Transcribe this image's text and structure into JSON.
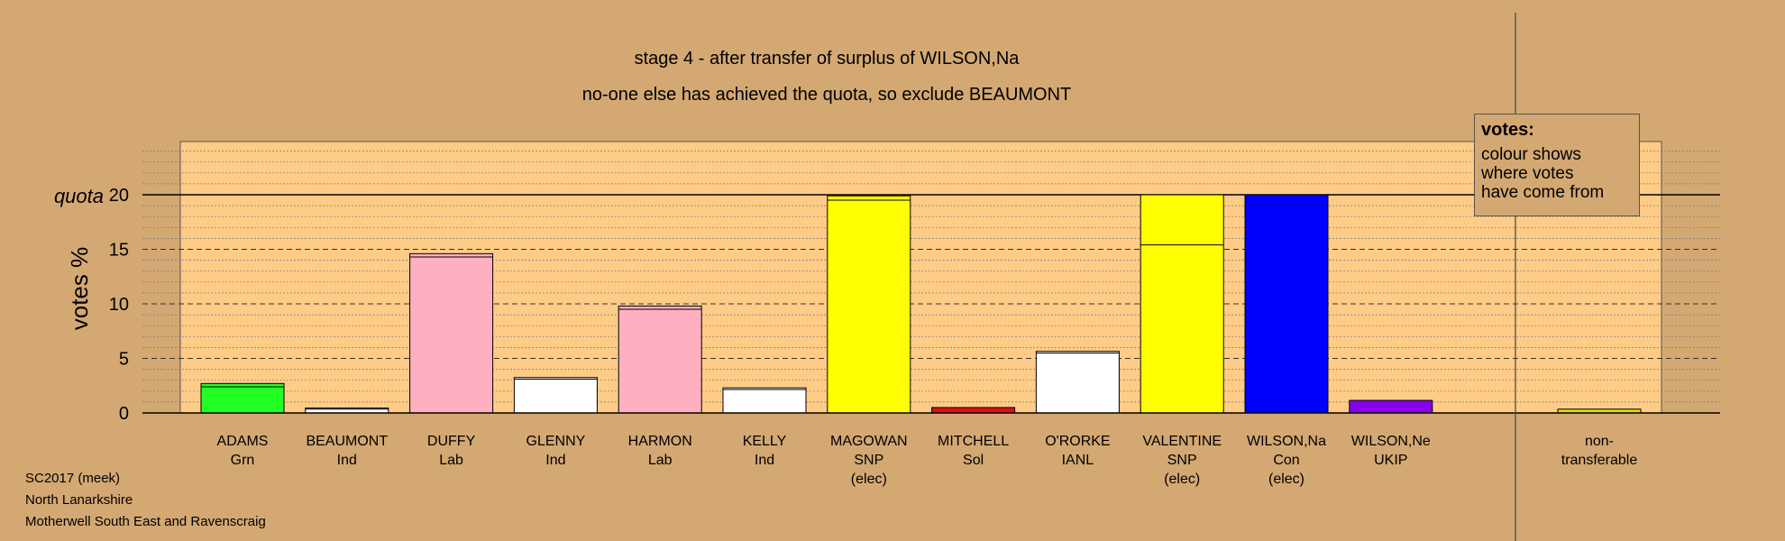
{
  "chart_data": {
    "type": "bar",
    "title": "stage 4 - after transfer of surplus of WILSON,Na",
    "subtitle": "no-one else has achieved the quota, so exclude BEAUMONT",
    "ylabel": "votes %",
    "quota_label": "quota",
    "quota": 20,
    "ylim": [
      0,
      25
    ],
    "yticks": [
      0,
      5,
      10,
      15,
      20
    ],
    "grid": true,
    "categories": [
      {
        "name": "ADAMS",
        "party": "Grn",
        "status": "",
        "color": "#22ff22",
        "base": 2.4,
        "total": 2.7
      },
      {
        "name": "BEAUMONT",
        "party": "Ind",
        "status": "",
        "color": "#ffffff",
        "base": 0.35,
        "total": 0.45
      },
      {
        "name": "DUFFY",
        "party": "Lab",
        "status": "",
        "color": "#ffb0c0",
        "base": 14.3,
        "total": 14.6
      },
      {
        "name": "GLENNY",
        "party": "Ind",
        "status": "",
        "color": "#ffffff",
        "base": 3.1,
        "total": 3.25
      },
      {
        "name": "HARMON",
        "party": "Lab",
        "status": "",
        "color": "#ffb0c0",
        "base": 9.5,
        "total": 9.8
      },
      {
        "name": "KELLY",
        "party": "Ind",
        "status": "",
        "color": "#ffffff",
        "base": 2.15,
        "total": 2.3
      },
      {
        "name": "MAGOWAN",
        "party": "SNP",
        "status": "(elec)",
        "color": "#ffff00",
        "base": 19.5,
        "total": 19.9
      },
      {
        "name": "MITCHELL",
        "party": "Sol",
        "status": "",
        "color": "#dd1111",
        "base": 0.5,
        "total": 0.5
      },
      {
        "name": "O'RORKE",
        "party": "IANL",
        "status": "",
        "color": "#ffffff",
        "base": 5.5,
        "total": 5.65
      },
      {
        "name": "VALENTINE",
        "party": "SNP",
        "status": "(elec)",
        "color": "#ffff00",
        "base": 15.4,
        "total": 20.0
      },
      {
        "name": "WILSON,Na",
        "party": "Con",
        "status": "(elec)",
        "color": "#0000ff",
        "base": 20.0,
        "total": 20.0
      },
      {
        "name": "WILSON,Ne",
        "party": "UKIP",
        "status": "",
        "color": "#8800ee",
        "base": 1.15,
        "total": 1.15
      }
    ],
    "non_transferable": {
      "label1": "non-",
      "label2": "transferable",
      "value": 0.35,
      "color": "#dddd00"
    }
  },
  "legend": {
    "title": "votes:",
    "line1": "colour shows",
    "line2": "where votes",
    "line3": "have come from"
  },
  "footer": {
    "line1": "SC2017 (meek)",
    "line2": "North Lanarkshire",
    "line3": "Motherwell South East and Ravenscraig"
  }
}
